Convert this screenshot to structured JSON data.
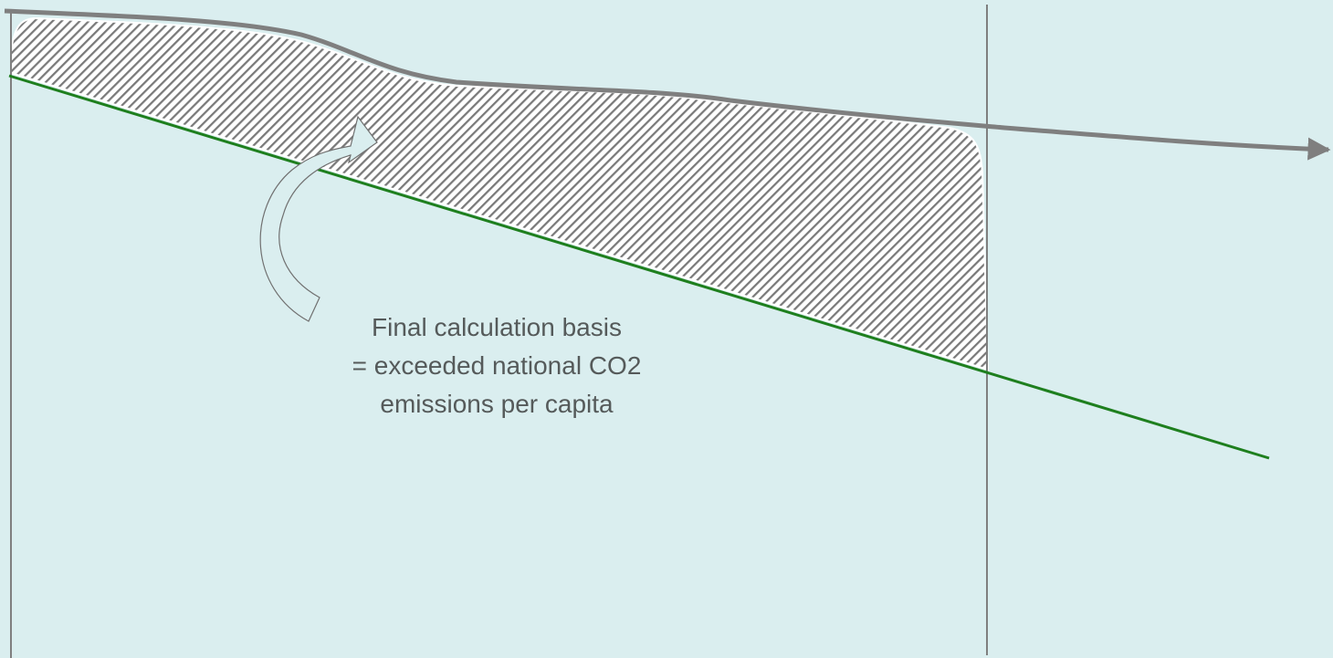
{
  "annotation": {
    "line1": "Final calculation basis",
    "line2": "= exceeded national CO2",
    "line3": "emissions per capita"
  },
  "colors": {
    "background": "#daeeef",
    "actual_emissions_curve": "#7f7f7f",
    "target_pathway_line": "#1e7f1e",
    "hatch_fill": "#7a7a7a",
    "axis_lines": "#7f7f7f",
    "annotation_text": "#555a5a"
  }
}
